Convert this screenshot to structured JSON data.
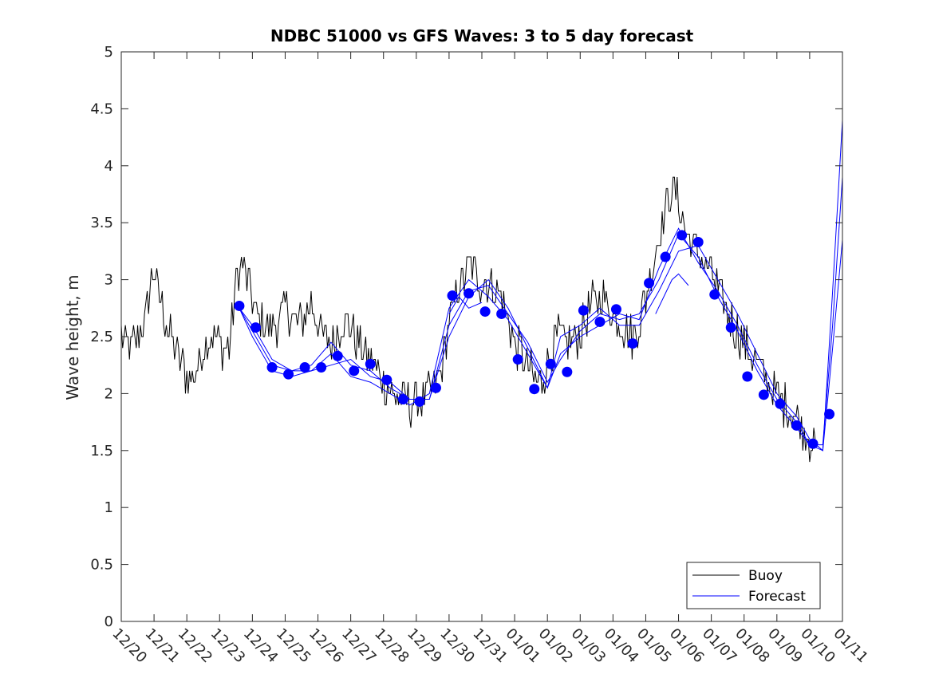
{
  "chart_data": {
    "type": "line",
    "title": "NDBC 51000 vs GFS Waves: 3 to 5 day forecast",
    "xlabel": "",
    "ylabel": "Wave height, m",
    "xlim": [
      0,
      22
    ],
    "ylim": [
      0,
      5
    ],
    "grid": false,
    "legend_position": "bottom-right",
    "x_ticks": [
      {
        "day": 0,
        "label": "12/20"
      },
      {
        "day": 1,
        "label": "12/21"
      },
      {
        "day": 2,
        "label": "12/22"
      },
      {
        "day": 3,
        "label": "12/23"
      },
      {
        "day": 4,
        "label": "12/24"
      },
      {
        "day": 5,
        "label": "12/25"
      },
      {
        "day": 6,
        "label": "12/26"
      },
      {
        "day": 7,
        "label": "12/27"
      },
      {
        "day": 8,
        "label": "12/28"
      },
      {
        "day": 9,
        "label": "12/29"
      },
      {
        "day": 10,
        "label": "12/30"
      },
      {
        "day": 11,
        "label": "12/31"
      },
      {
        "day": 12,
        "label": "01/01"
      },
      {
        "day": 13,
        "label": "01/02"
      },
      {
        "day": 14,
        "label": "01/03"
      },
      {
        "day": 15,
        "label": "01/04"
      },
      {
        "day": 16,
        "label": "01/05"
      },
      {
        "day": 17,
        "label": "01/06"
      },
      {
        "day": 18,
        "label": "01/07"
      },
      {
        "day": 19,
        "label": "01/08"
      },
      {
        "day": 20,
        "label": "01/09"
      },
      {
        "day": 21,
        "label": "01/10"
      },
      {
        "day": 22,
        "label": "01/11"
      }
    ],
    "y_ticks": [
      "0",
      "0.5",
      "1",
      "1.5",
      "2",
      "2.5",
      "3",
      "3.5",
      "4",
      "4.5",
      "5"
    ],
    "legend": [
      "Buoy",
      "Forecast"
    ],
    "colors": {
      "buoy": "#000000",
      "forecast": "#0000ff",
      "axis": "#262626"
    },
    "buoy_noise": 0.18,
    "series": [
      {
        "name": "Buoy",
        "x": [
          0,
          0.3,
          0.7,
          0.9,
          1.0,
          1.2,
          1.5,
          1.8,
          2.0,
          2.3,
          2.6,
          2.9,
          3.1,
          3.3,
          3.5,
          3.7,
          3.9,
          4.1,
          4.4,
          4.7,
          5.0,
          5.3,
          5.5,
          5.8,
          6.1,
          6.4,
          6.7,
          7.0,
          7.3,
          7.6,
          8.0,
          8.3,
          8.6,
          8.9,
          9.2,
          9.5,
          9.8,
          10.0,
          10.3,
          10.6,
          10.9,
          11.2,
          11.5,
          11.8,
          12.0,
          12.3,
          12.6,
          12.8,
          13.0,
          13.3,
          13.6,
          13.9,
          14.1,
          14.4,
          14.7,
          15.0,
          15.3,
          15.6,
          15.8,
          16.0,
          16.2,
          16.4,
          16.6,
          16.8,
          17.0,
          17.2,
          17.4,
          17.7,
          18.0,
          18.3,
          18.6,
          18.9,
          19.2,
          19.5,
          19.8,
          20.1,
          20.4,
          20.7,
          21.0,
          21.2
        ],
        "values": [
          2.5,
          2.4,
          2.6,
          3.0,
          3.1,
          2.8,
          2.5,
          2.3,
          2.15,
          2.2,
          2.5,
          2.5,
          2.4,
          2.4,
          3.0,
          3.15,
          2.95,
          2.7,
          2.6,
          2.6,
          2.75,
          2.65,
          2.6,
          2.8,
          2.5,
          2.45,
          2.6,
          2.6,
          2.4,
          2.3,
          2.1,
          2.0,
          1.95,
          1.9,
          1.95,
          2.0,
          2.25,
          2.65,
          2.95,
          3.1,
          3.0,
          2.95,
          2.9,
          2.65,
          2.45,
          2.3,
          2.15,
          2.1,
          2.25,
          2.5,
          2.45,
          2.5,
          2.6,
          2.8,
          2.85,
          2.7,
          2.6,
          2.5,
          2.6,
          2.85,
          3.1,
          3.4,
          3.6,
          3.8,
          3.7,
          3.45,
          3.3,
          3.2,
          3.05,
          2.85,
          2.65,
          2.5,
          2.35,
          2.2,
          2.05,
          1.95,
          1.85,
          1.75,
          1.6,
          1.55
        ]
      },
      {
        "name": "Forecast",
        "lines": [
          {
            "x": [
              3.6,
              4.0,
              4.6,
              5.2,
              5.8,
              6.4,
              7.0,
              7.6,
              8.2,
              8.8,
              9.4,
              10.0,
              10.6,
              11.2,
              11.8,
              12.4,
              13.0,
              13.4,
              14.0,
              14.6,
              15.2,
              15.8,
              16.4,
              17.0,
              17.6,
              18.2,
              18.8,
              19.4,
              20.0,
              20.6,
              21.0,
              21.4,
              21.7,
              22.0
            ],
            "values": [
              2.75,
              2.6,
              2.3,
              2.2,
              2.25,
              2.45,
              2.25,
              2.2,
              2.05,
              1.95,
              1.95,
              2.6,
              2.9,
              2.95,
              2.7,
              2.45,
              2.1,
              2.3,
              2.55,
              2.7,
              2.65,
              2.7,
              3.0,
              3.4,
              3.2,
              2.85,
              2.55,
              2.2,
              1.9,
              1.7,
              1.55,
              1.5,
              2.4,
              3.35
            ]
          },
          {
            "x": [
              3.6,
              4.0,
              4.6,
              5.2,
              5.8,
              6.4,
              7.0,
              7.6,
              8.2,
              8.8,
              9.4,
              10.0,
              10.6,
              11.2,
              11.8,
              12.4,
              13.0,
              13.4,
              14.0,
              14.6,
              15.2,
              15.8,
              16.4,
              17.0,
              17.6,
              18.2,
              18.8,
              19.4,
              20.0,
              20.6,
              21.0,
              21.4,
              21.7,
              22.0
            ],
            "values": [
              2.75,
              2.55,
              2.25,
              2.2,
              2.2,
              2.35,
              2.15,
              2.1,
              2.0,
              1.9,
              2.0,
              2.75,
              3.0,
              2.85,
              2.65,
              2.35,
              2.05,
              2.5,
              2.6,
              2.75,
              2.6,
              2.6,
              2.9,
              3.25,
              3.3,
              3.0,
              2.7,
              2.35,
              2.0,
              1.8,
              1.6,
              1.5,
              2.9,
              4.4
            ]
          },
          {
            "x": [
              3.6,
              4.0,
              4.6,
              5.2,
              5.8,
              6.4,
              7.0,
              7.6,
              8.2,
              8.8,
              9.4,
              10.0,
              10.6,
              11.2,
              11.8,
              12.4,
              13.0,
              13.4,
              14.0,
              14.6,
              15.2,
              15.8,
              16.4,
              17.0,
              17.6,
              18.2,
              18.8,
              19.4,
              20.0,
              20.6,
              21.0,
              21.4,
              21.7,
              22.0
            ],
            "values": [
              2.75,
              2.5,
              2.2,
              2.15,
              2.2,
              2.25,
              2.3,
              2.15,
              2.1,
              1.95,
              1.95,
              2.5,
              2.85,
              3.0,
              2.75,
              2.4,
              2.05,
              2.35,
              2.5,
              2.6,
              2.7,
              2.65,
              3.1,
              3.45,
              3.15,
              2.9,
              2.6,
              2.25,
              1.95,
              1.75,
              1.55,
              1.55,
              2.6,
              3.9
            ]
          },
          {
            "x": [
              10.0,
              10.3,
              10.6,
              11.0
            ],
            "values": [
              2.7,
              2.85,
              2.75,
              2.8
            ]
          },
          {
            "x": [
              16.3,
              16.8,
              17.0,
              17.3
            ],
            "values": [
              2.7,
              3.0,
              3.05,
              2.95
            ]
          }
        ],
        "markers": {
          "x": [
            3.6,
            4.1,
            4.6,
            5.1,
            5.6,
            6.1,
            6.6,
            7.1,
            7.6,
            8.1,
            8.6,
            9.1,
            9.6,
            10.1,
            10.6,
            11.1,
            11.6,
            12.1,
            12.6,
            13.1,
            13.6,
            14.1,
            14.6,
            15.1,
            15.6,
            16.1,
            16.6,
            17.1,
            17.6,
            18.1,
            18.6,
            19.1,
            19.6,
            20.1,
            20.6,
            21.1,
            21.6
          ],
          "values": [
            2.77,
            2.58,
            2.23,
            2.17,
            2.23,
            2.23,
            2.33,
            2.2,
            2.26,
            2.12,
            1.95,
            1.93,
            2.05,
            2.86,
            2.88,
            2.72,
            2.7,
            2.3,
            2.04,
            2.26,
            2.19,
            2.73,
            2.63,
            2.74,
            2.44,
            2.97,
            3.2,
            3.39,
            3.33,
            2.87,
            2.58,
            2.15,
            1.99,
            1.91,
            1.72,
            1.56,
            1.82
          ]
        }
      }
    ]
  }
}
